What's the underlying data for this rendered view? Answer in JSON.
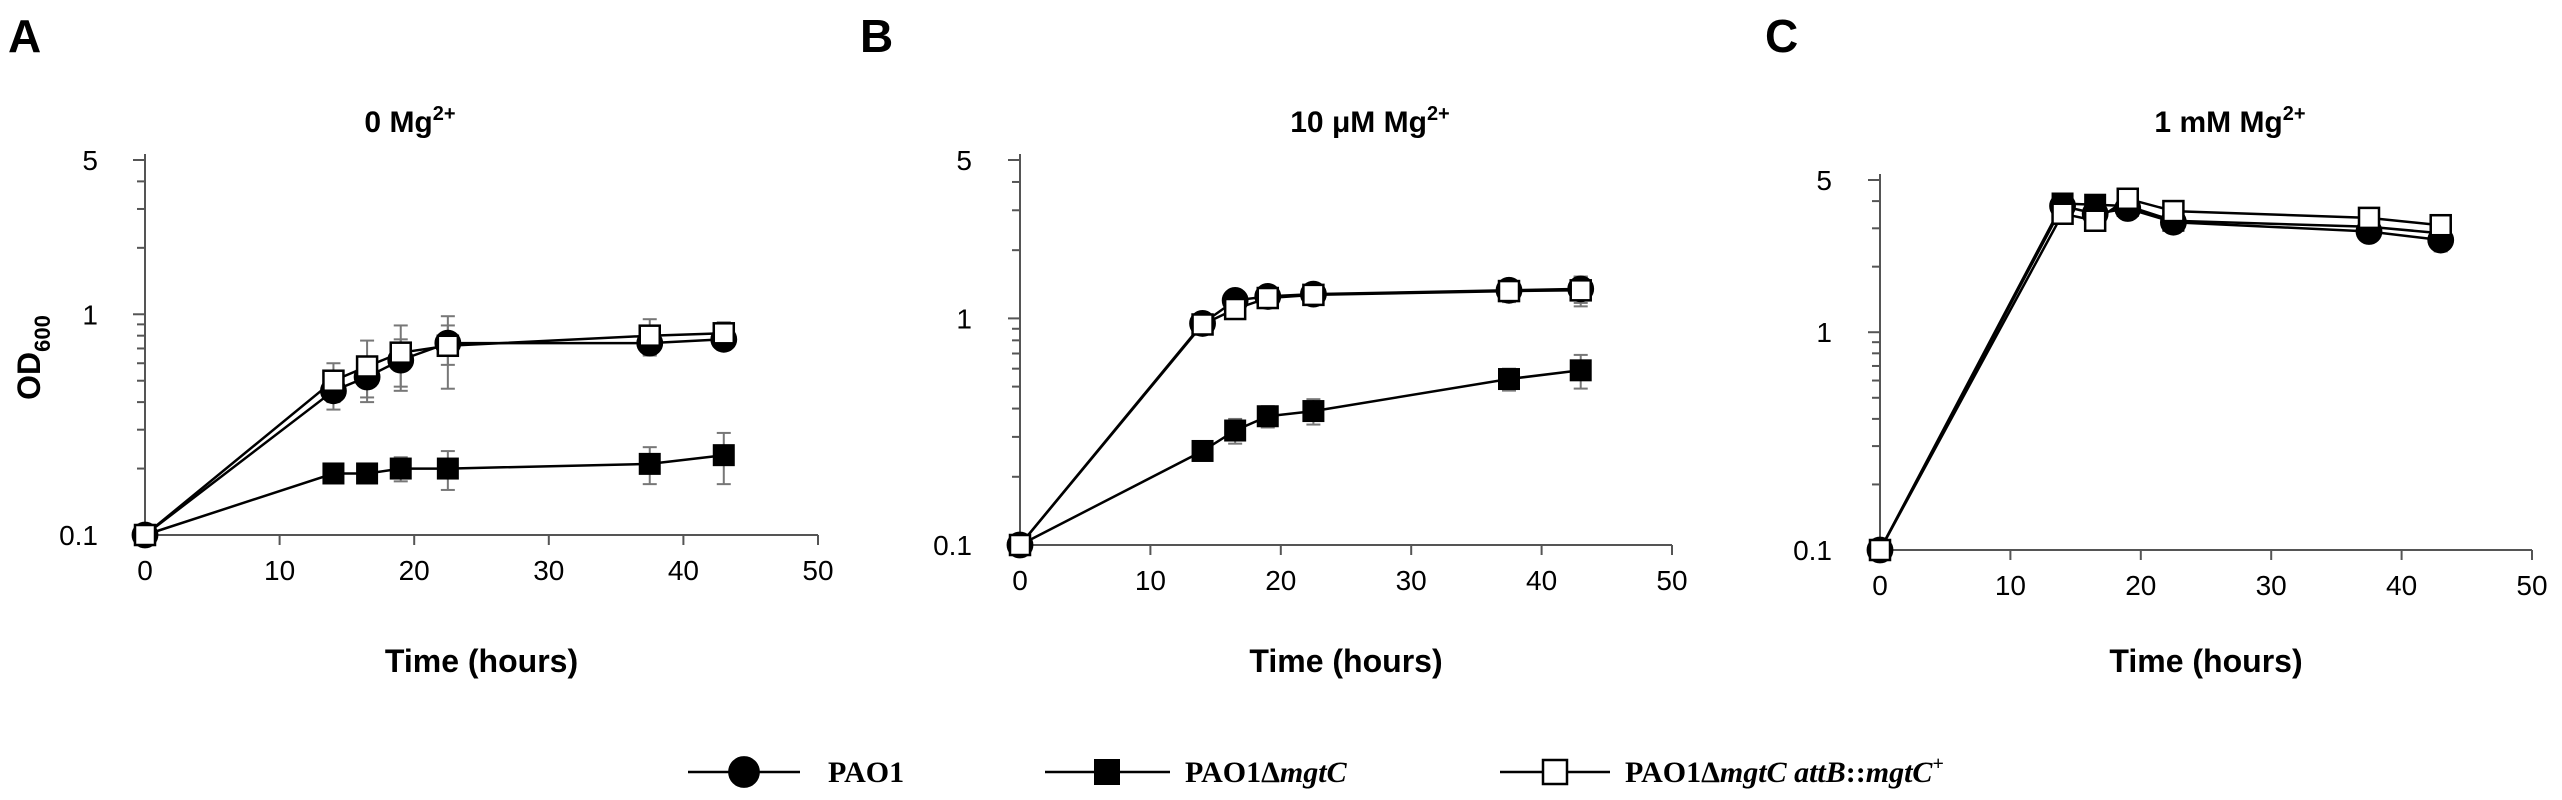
{
  "chart_data": [
    {
      "type": "line",
      "panel_label": "A",
      "title": "0 Mg",
      "title_sup": "2+",
      "xlabel": "Time (hours)",
      "ylabel": "OD",
      "ylabel_sub": "600",
      "xlim": [
        0,
        50
      ],
      "ylim": [
        0.1,
        5
      ],
      "yscale": "log",
      "xticks": [
        "0",
        "10",
        "20",
        "30",
        "40",
        "50"
      ],
      "yticks": [
        "0.1",
        "1",
        "5"
      ],
      "series": [
        {
          "key": "pao1",
          "x": [
            0,
            14,
            16.5,
            19,
            22.5,
            37.5,
            43
          ],
          "y": [
            0.1,
            0.45,
            0.52,
            0.62,
            0.74,
            0.74,
            0.77
          ],
          "err": [
            0,
            0.08,
            0.1,
            0.15,
            0.15,
            0.08,
            0.08
          ]
        },
        {
          "key": "mgtc",
          "x": [
            0,
            14,
            16.5,
            19,
            22.5,
            37.5,
            43
          ],
          "y": [
            0.1,
            0.19,
            0.19,
            0.2,
            0.2,
            0.21,
            0.23
          ],
          "err": [
            0,
            0.015,
            0.015,
            0.025,
            0.04,
            0.04,
            0.06
          ]
        },
        {
          "key": "comp",
          "x": [
            0,
            14,
            16.5,
            19,
            22.5,
            37.5,
            43
          ],
          "y": [
            0.1,
            0.5,
            0.58,
            0.67,
            0.72,
            0.8,
            0.82
          ],
          "err": [
            0,
            0.1,
            0.18,
            0.22,
            0.26,
            0.15,
            0.1
          ]
        }
      ]
    },
    {
      "type": "line",
      "panel_label": "B",
      "title": "10 μM Mg",
      "title_sup": "2+",
      "xlabel": "Time (hours)",
      "ylabel": "",
      "xlim": [
        0,
        50
      ],
      "ylim": [
        0.1,
        5
      ],
      "yscale": "log",
      "xticks": [
        "0",
        "10",
        "20",
        "30",
        "40",
        "50"
      ],
      "yticks": [
        "0.1",
        "1",
        "5"
      ],
      "series": [
        {
          "key": "pao1",
          "x": [
            0,
            14,
            16.5,
            19,
            22.5,
            37.5,
            43
          ],
          "y": [
            0.1,
            0.95,
            1.2,
            1.25,
            1.28,
            1.33,
            1.35
          ],
          "err": [
            0,
            0.05,
            0.08,
            0.1,
            0.1,
            0.15,
            0.18
          ]
        },
        {
          "key": "mgtc",
          "x": [
            0,
            14,
            16.5,
            19,
            22.5,
            37.5,
            43
          ],
          "y": [
            0.1,
            0.26,
            0.32,
            0.37,
            0.39,
            0.54,
            0.59
          ],
          "err": [
            0,
            0.02,
            0.04,
            0.04,
            0.05,
            0.06,
            0.1
          ]
        },
        {
          "key": "comp",
          "x": [
            0,
            14,
            16.5,
            19,
            22.5,
            37.5,
            43
          ],
          "y": [
            0.1,
            0.94,
            1.1,
            1.23,
            1.27,
            1.32,
            1.33
          ],
          "err": [
            0,
            0.05,
            0.08,
            0.1,
            0.1,
            0.12,
            0.2
          ]
        }
      ]
    },
    {
      "type": "line",
      "panel_label": "C",
      "title": "1 mM Mg",
      "title_sup": "2+",
      "xlabel": "Time (hours)",
      "ylabel": "",
      "xlim": [
        0,
        50
      ],
      "ylim": [
        0.1,
        5
      ],
      "yscale": "log",
      "xticks": [
        "0",
        "10",
        "20",
        "30",
        "40",
        "50"
      ],
      "yticks": [
        "0.1",
        "1",
        "5"
      ],
      "series": [
        {
          "key": "pao1",
          "x": [
            0,
            14,
            16.5,
            19,
            22.5,
            37.5,
            43
          ],
          "y": [
            0.1,
            3.8,
            3.5,
            3.7,
            3.2,
            2.9,
            2.65
          ],
          "err": [
            0,
            0.3,
            0.3,
            0.3,
            0.3,
            0.3,
            0.3
          ]
        },
        {
          "key": "mgtc",
          "x": [
            0,
            14,
            16.5,
            19,
            22.5,
            37.5,
            43
          ],
          "y": [
            0.1,
            3.9,
            3.85,
            3.8,
            3.25,
            3.05,
            2.85
          ],
          "err": [
            0,
            0.3,
            0.3,
            0.3,
            0.3,
            0.3,
            0.3
          ]
        },
        {
          "key": "comp",
          "x": [
            0,
            14,
            16.5,
            19,
            22.5,
            37.5,
            43
          ],
          "y": [
            0.1,
            3.5,
            3.25,
            4.1,
            3.6,
            3.35,
            3.1
          ],
          "err": [
            0,
            0.3,
            0.3,
            0.3,
            0.3,
            0.3,
            0.3
          ]
        }
      ]
    }
  ],
  "legend": {
    "placement": "bottom",
    "items": [
      {
        "key": "pao1",
        "marker": "filled-circle",
        "parts": [
          {
            "text": "PAO1",
            "italic": false
          }
        ]
      },
      {
        "key": "mgtc",
        "marker": "filled-square",
        "parts": [
          {
            "text": "PAO1Δ",
            "italic": false
          },
          {
            "text": "mgtC",
            "italic": true
          }
        ]
      },
      {
        "key": "comp",
        "marker": "open-square",
        "parts": [
          {
            "text": "PAO1Δ",
            "italic": false
          },
          {
            "text": "mgtC attB",
            "italic": true
          },
          {
            "text": "::",
            "italic": false
          },
          {
            "text": "mgtC",
            "italic": true
          },
          {
            "text": "+",
            "italic": false,
            "sup": true
          }
        ]
      }
    ]
  },
  "colors": {
    "line": "#000000",
    "errorbar": "#777777",
    "open_fill": "#ffffff",
    "axis": "#555555"
  }
}
